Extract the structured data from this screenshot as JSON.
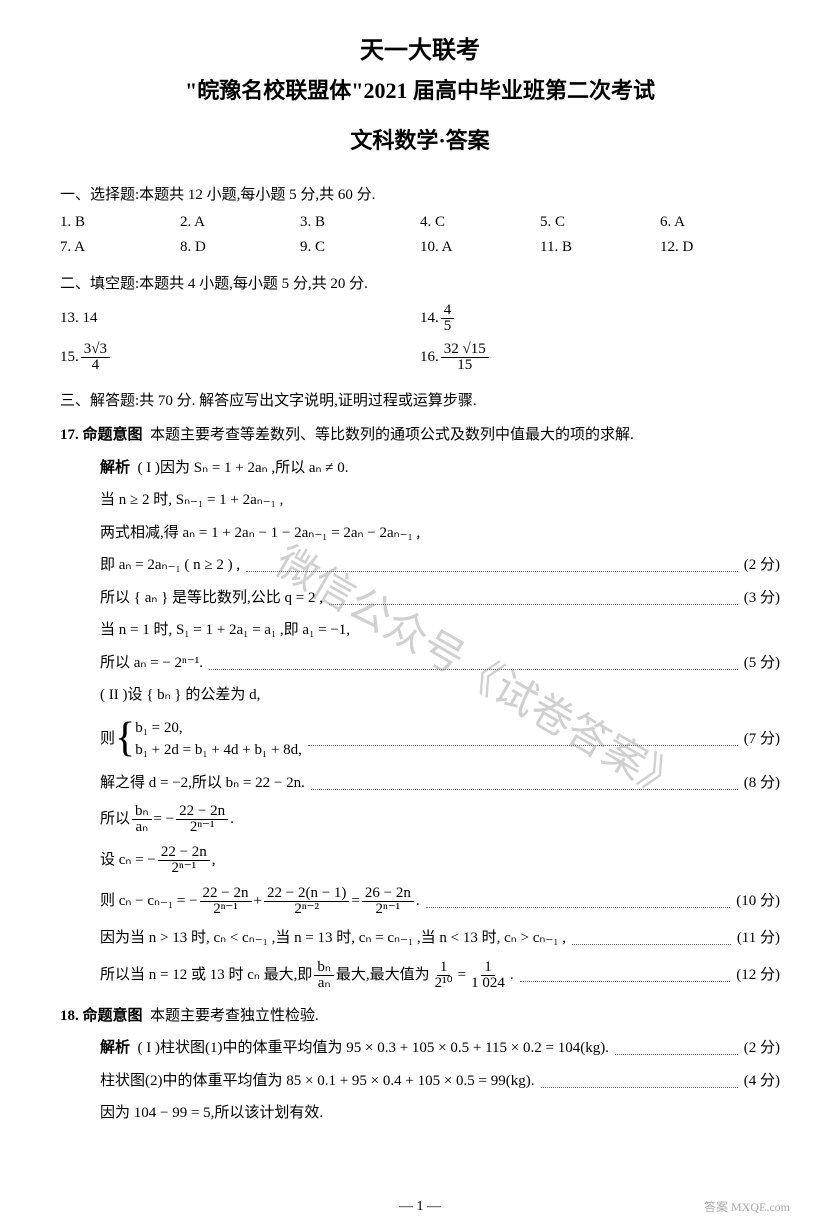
{
  "header": {
    "line1": "天一大联考",
    "line2": "\"皖豫名校联盟体\"2021 届高中毕业班第二次考试",
    "line3": "文科数学·答案"
  },
  "section1": {
    "head": "一、选择题:本题共 12 小题,每小题 5 分,共 60 分.",
    "answers": [
      [
        "1. B",
        "2. A",
        "3. B",
        "4. C",
        "5. C",
        "6. A"
      ],
      [
        "7. A",
        "8. D",
        "9. C",
        "10. A",
        "11. B",
        "12. D"
      ]
    ]
  },
  "section2": {
    "head": "二、填空题:本题共 4 小题,每小题 5 分,共 20 分.",
    "a13": "13. 14",
    "a14_label": "14. ",
    "a14_num": "4",
    "a14_den": "5",
    "a15_label": "15. ",
    "a15_num": "3√3",
    "a15_den": "4",
    "a16_label": "16. ",
    "a16_num": "32 √15",
    "a16_den": "15"
  },
  "section3": {
    "head": "三、解答题:共 70 分. 解答应写出文字说明,证明过程或运算步骤."
  },
  "q17": {
    "stem_label": "17. 命题意图",
    "stem_text": "本题主要考查等差数列、等比数列的通项公式及数列中值最大的项的求解.",
    "p_label": "解析",
    "l1": "( I )因为 Sₙ = 1 + 2aₙ ,所以 aₙ ≠ 0.",
    "l2": "当 n ≥ 2 时, Sₙ₋₁ = 1 + 2aₙ₋₁ ,",
    "l3": "两式相减,得 aₙ = 1 + 2aₙ − 1 − 2aₙ₋₁ = 2aₙ − 2aₙ₋₁ ,",
    "l4": "即 aₙ = 2aₙ₋₁ ( n ≥ 2 ) ,",
    "l4_score": "(2 分)",
    "l5": "所以 { aₙ } 是等比数列,公比 q = 2 ,",
    "l5_score": "(3 分)",
    "l6": "当 n = 1 时, S₁ = 1 + 2a₁ = a₁ ,即 a₁ = −1,",
    "l7": "所以 aₙ = − 2ⁿ⁻¹.",
    "l7_score": "(5 分)",
    "l8": "( II )设 { bₙ } 的公差为 d,",
    "l9a": "b₁ = 20,",
    "l9b": "b₁ + 2d = b₁ + 4d + b₁ + 8d,",
    "l9_lead": "则",
    "l9_score": "(7 分)",
    "l10": "解之得 d = −2,所以 bₙ = 22 − 2n.",
    "l10_score": "(8 分)",
    "l11_lead": "所以",
    "l11_numL": "bₙ",
    "l11_denL": "aₙ",
    "l11_eq": " = − ",
    "l11_numR": "22 − 2n",
    "l11_denR": "2ⁿ⁻¹",
    "l11_tail": ".",
    "l12_lead": "设 cₙ = − ",
    "l12_num": "22 − 2n",
    "l12_den": "2ⁿ⁻¹",
    "l12_tail": " ,",
    "l13_lead": "则 cₙ − cₙ₋₁ = − ",
    "l13_n1": "22 − 2n",
    "l13_d1": "2ⁿ⁻¹",
    "l13_plus": " + ",
    "l13_n2": "22 − 2(n − 1)",
    "l13_d2": "2ⁿ⁻²",
    "l13_eq": " = ",
    "l13_n3": "26 − 2n",
    "l13_d3": "2ⁿ⁻¹",
    "l13_tail": ".",
    "l13_score": "(10 分)",
    "l14": "因为当 n > 13 时, cₙ < cₙ₋₁ ,当 n = 13 时, cₙ = cₙ₋₁ ,当 n < 13 时, cₙ > cₙ₋₁ ,",
    "l14_score": "(11 分)",
    "l15_lead": "所以当 n = 12 或 13 时 cₙ 最大,即",
    "l15_nL": "bₙ",
    "l15_dL": "aₙ",
    "l15_mid": "最大,最大值为",
    "l15_nM": "1",
    "l15_dM": "2¹⁰",
    "l15_eq": " = ",
    "l15_nR": "1",
    "l15_dR": "1 024",
    "l15_tail": ".",
    "l15_score": "(12 分)"
  },
  "q18": {
    "stem_label": "18. 命题意图",
    "stem_text": "本题主要考查独立性检验.",
    "p_label": "解析",
    "l1": "( I )柱状图(1)中的体重平均值为 95 × 0.3 + 105 × 0.5 + 115 × 0.2 = 104(kg).",
    "l1_score": "(2 分)",
    "l2": "柱状图(2)中的体重平均值为 85 × 0.1 + 95 × 0.4 + 105 × 0.5 = 99(kg).",
    "l2_score": "(4 分)",
    "l3": "因为 104 − 99 = 5,所以该计划有效."
  },
  "watermark": "微信公众号《试卷答案》",
  "pagenum": "— 1 —",
  "footer_logo": "答案 MXQE.com"
}
